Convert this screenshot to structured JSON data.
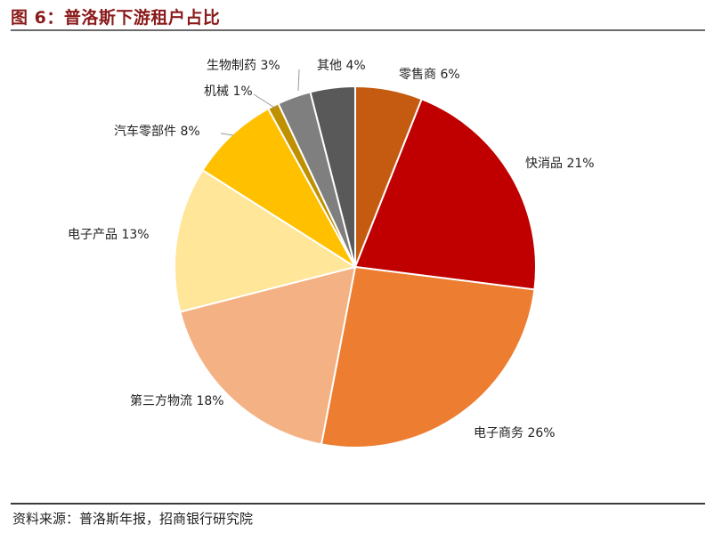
{
  "header": {
    "title": "图 6：普洛斯下游租户占比"
  },
  "footer": {
    "source": "资料来源：普洛斯年报，招商银行研究院"
  },
  "chart_data": {
    "type": "pie",
    "title": "",
    "slices": [
      {
        "name": "零售商",
        "value": 6,
        "label": "零售商 6%",
        "color": "#C55A11"
      },
      {
        "name": "快消品",
        "value": 21,
        "label": "快消品 21%",
        "color": "#C00000"
      },
      {
        "name": "电子商务",
        "value": 26,
        "label": "电子商务 26%",
        "color": "#ED7D31"
      },
      {
        "name": "第三方物流",
        "value": 18,
        "label": "第三方物流 18%",
        "color": "#F4B183"
      },
      {
        "name": "电子产品",
        "value": 13,
        "label": "电子产品 13%",
        "color": "#FFE699"
      },
      {
        "name": "汽车零部件",
        "value": 8,
        "label": "汽车零部件 8%",
        "color": "#FFC000"
      },
      {
        "name": "机械",
        "value": 1,
        "label": "机械 1%",
        "color": "#BF9000"
      },
      {
        "name": "生物制药",
        "value": 3,
        "label": "生物制药 3%",
        "color": "#7F7F7F"
      },
      {
        "name": "其他",
        "value": 4,
        "label": "其他 4%",
        "color": "#595959"
      }
    ]
  }
}
